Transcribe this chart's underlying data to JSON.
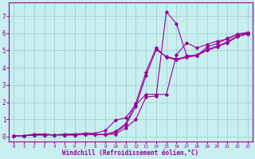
{
  "xlabel": "Windchill (Refroidissement éolien,°C)",
  "xlim": [
    -0.5,
    23.5
  ],
  "ylim": [
    -0.3,
    7.8
  ],
  "xticks": [
    0,
    1,
    2,
    3,
    4,
    5,
    6,
    7,
    8,
    9,
    10,
    11,
    12,
    13,
    14,
    15,
    16,
    17,
    18,
    19,
    20,
    21,
    22,
    23
  ],
  "yticks": [
    0,
    1,
    2,
    3,
    4,
    5,
    6,
    7
  ],
  "bg_color": "#c8eef0",
  "grid_color": "#a0d4cc",
  "line_color": "#990099",
  "lines": [
    {
      "x": [
        0,
        1,
        2,
        3,
        4,
        5,
        6,
        7,
        8,
        9,
        10,
        11,
        12,
        13,
        14,
        15,
        16,
        17,
        18,
        19,
        20,
        21,
        22,
        23
      ],
      "y": [
        0.05,
        0.05,
        0.1,
        0.1,
        0.1,
        0.1,
        0.1,
        0.12,
        0.12,
        0.12,
        0.15,
        0.5,
        1.0,
        2.3,
        2.35,
        7.25,
        6.55,
        4.7,
        4.7,
        5.2,
        5.4,
        5.7,
        5.95,
        6.0
      ]
    },
    {
      "x": [
        0,
        1,
        2,
        3,
        4,
        5,
        6,
        7,
        8,
        9,
        10,
        11,
        12,
        13,
        14,
        15,
        16,
        17,
        18,
        19,
        20,
        21,
        22,
        23
      ],
      "y": [
        0.05,
        0.05,
        0.1,
        0.1,
        0.1,
        0.1,
        0.1,
        0.12,
        0.12,
        0.12,
        0.25,
        0.65,
        1.75,
        3.55,
        5.05,
        4.65,
        4.5,
        4.65,
        4.75,
        5.05,
        5.25,
        5.5,
        5.85,
        6.0
      ]
    },
    {
      "x": [
        0,
        1,
        2,
        3,
        4,
        5,
        6,
        7,
        8,
        9,
        10,
        11,
        12,
        13,
        14,
        15,
        16,
        17,
        18,
        19,
        20,
        21,
        22,
        23
      ],
      "y": [
        0.05,
        0.05,
        0.1,
        0.1,
        0.1,
        0.1,
        0.1,
        0.12,
        0.12,
        0.12,
        0.3,
        0.75,
        1.95,
        3.75,
        5.15,
        4.6,
        4.45,
        4.6,
        4.7,
        5.0,
        5.2,
        5.45,
        5.8,
        5.95
      ]
    },
    {
      "x": [
        0,
        1,
        2,
        3,
        4,
        5,
        6,
        7,
        8,
        9,
        10,
        11,
        12,
        13,
        14,
        15,
        16,
        17,
        18,
        19,
        20,
        21,
        22,
        23
      ],
      "y": [
        0.05,
        0.05,
        0.15,
        0.15,
        0.1,
        0.15,
        0.15,
        0.2,
        0.2,
        0.35,
        0.95,
        1.1,
        1.85,
        2.45,
        2.45,
        2.45,
        4.75,
        5.45,
        5.15,
        5.35,
        5.55,
        5.65,
        5.95,
        6.05
      ]
    }
  ]
}
